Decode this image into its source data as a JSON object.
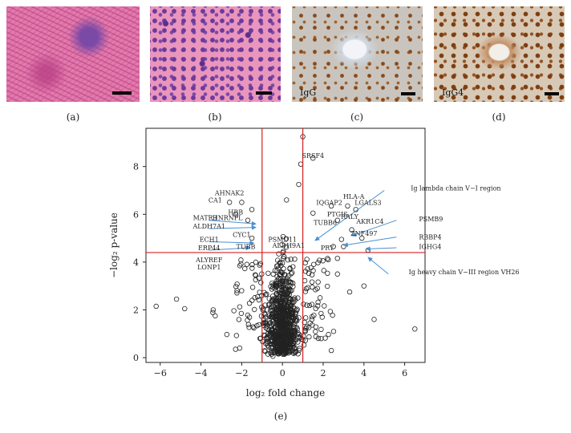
{
  "panels": {
    "a": {
      "label": "(a)"
    },
    "b": {
      "label": "(b)"
    },
    "c": {
      "label": "(c)",
      "tag": "IgG"
    },
    "d": {
      "label": "(d)",
      "tag": "IgG4"
    },
    "e": {
      "label": "(e)"
    }
  },
  "colors": {
    "he_pink": "#d86a98",
    "he_purple": "#6a3f9a",
    "ihc_blue": "#b9c8d8",
    "ihc_brown": "#8a4a1c",
    "threshold_red": "#d62020",
    "arrow_blue": "#4a90d0"
  },
  "chart_data": {
    "type": "scatter",
    "xlabel": "log₂ fold change",
    "ylabel": "−log₂ p-value",
    "xlim": [
      -6.7,
      7.0
    ],
    "ylim": [
      -0.2,
      9.6
    ],
    "xticks": [
      -6,
      -4,
      -2,
      0,
      2,
      4,
      6
    ],
    "yticks": [
      0,
      2,
      4,
      6,
      8
    ],
    "thresholds": {
      "x": [
        -1,
        1
      ],
      "y": 4.4
    },
    "grid": false,
    "labels": [
      {
        "text": "SRSF4",
        "x": 1.5,
        "y": 8.35
      },
      {
        "text": "AHNAK2",
        "x": -2.6,
        "y": 6.8
      },
      {
        "text": "CA1",
        "x": -3.3,
        "y": 6.5
      },
      {
        "text": "HBB",
        "x": -2.3,
        "y": 6.0
      },
      {
        "text": "HNRNPL",
        "x": -2.7,
        "y": 5.75
      },
      {
        "text": "MATR3",
        "x": -3.8,
        "y": 5.75
      },
      {
        "text": "ALDH7A1",
        "x": -3.6,
        "y": 5.4
      },
      {
        "text": "CYC1",
        "x": -2.0,
        "y": 5.05
      },
      {
        "text": "ECH1",
        "x": -3.6,
        "y": 4.85
      },
      {
        "text": "TUBB",
        "x": -1.8,
        "y": 4.55
      },
      {
        "text": "ERP44",
        "x": -3.6,
        "y": 4.5
      },
      {
        "text": "ALYREF",
        "x": -3.6,
        "y": 4.0
      },
      {
        "text": "LONP1",
        "x": -3.6,
        "y": 3.7
      },
      {
        "text": "PSMD11",
        "x": 0.0,
        "y": 4.85
      },
      {
        "text": "ALDH9A1",
        "x": 0.3,
        "y": 4.6
      },
      {
        "text": "IQGAP2",
        "x": 2.3,
        "y": 6.4
      },
      {
        "text": "HLA-A",
        "x": 3.5,
        "y": 6.65
      },
      {
        "text": "LGALS3",
        "x": 4.2,
        "y": 6.4
      },
      {
        "text": "PTGIS",
        "x": 2.7,
        "y": 5.9
      },
      {
        "text": "TUBB6",
        "x": 2.1,
        "y": 5.55
      },
      {
        "text": "RALY",
        "x": 3.3,
        "y": 5.8
      },
      {
        "text": "PRY",
        "x": 2.2,
        "y": 4.5
      },
      {
        "text": "AKR1C4",
        "x": 4.3,
        "y": 5.6
      },
      {
        "text": "ZNF497",
        "x": 4.0,
        "y": 5.1
      },
      {
        "text": "Ig lambda chain V−I region",
        "x": 6.3,
        "y": 7.0
      },
      {
        "text": "PSMB9",
        "x": 6.7,
        "y": 5.7
      },
      {
        "text": "RBBP4",
        "x": 6.7,
        "y": 4.95
      },
      {
        "text": "IGHG4",
        "x": 6.7,
        "y": 4.55
      },
      {
        "text": "Ig heavy chain V−III region VH26",
        "x": 6.2,
        "y": 3.5
      }
    ],
    "arrows": [
      {
        "from": [
          -3.6,
          5.75
        ],
        "to": [
          -1.3,
          5.6
        ]
      },
      {
        "from": [
          -3.6,
          5.4
        ],
        "to": [
          -1.3,
          5.45
        ]
      },
      {
        "from": [
          -3.6,
          4.85
        ],
        "to": [
          -1.4,
          4.8
        ]
      },
      {
        "from": [
          -3.6,
          4.5
        ],
        "to": [
          -1.6,
          4.6
        ]
      },
      {
        "from": [
          5.0,
          7.0
        ],
        "to": [
          1.6,
          4.9
        ]
      },
      {
        "from": [
          5.6,
          5.75
        ],
        "to": [
          3.4,
          5.1
        ]
      },
      {
        "from": [
          5.6,
          5.05
        ],
        "to": [
          3.0,
          4.7
        ]
      },
      {
        "from": [
          5.6,
          4.6
        ],
        "to": [
          4.1,
          4.55
        ]
      },
      {
        "from": [
          5.2,
          3.5
        ],
        "to": [
          4.2,
          4.2
        ]
      }
    ],
    "points_outliers": [
      [
        -6.2,
        2.15
      ],
      [
        -5.2,
        2.45
      ],
      [
        -4.8,
        2.05
      ],
      [
        -3.4,
        2.0
      ],
      [
        -3.3,
        1.75
      ],
      [
        -2.6,
        6.5
      ],
      [
        -2.0,
        6.5
      ],
      [
        -1.5,
        6.2
      ],
      [
        -2.3,
        6.0
      ],
      [
        -1.7,
        5.75
      ],
      [
        1.0,
        9.25
      ],
      [
        1.5,
        8.35
      ],
      [
        0.9,
        8.1
      ],
      [
        0.8,
        7.25
      ],
      [
        0.2,
        6.6
      ],
      [
        2.4,
        6.35
      ],
      [
        3.2,
        6.35
      ],
      [
        3.6,
        6.2
      ],
      [
        2.7,
        5.75
      ],
      [
        3.4,
        5.35
      ],
      [
        3.9,
        5.0
      ],
      [
        4.2,
        4.5
      ],
      [
        2.9,
        4.95
      ],
      [
        3.0,
        4.65
      ],
      [
        2.5,
        4.65
      ],
      [
        4.5,
        1.6
      ],
      [
        6.5,
        1.2
      ],
      [
        2.4,
        0.3
      ],
      [
        3.3,
        2.75
      ],
      [
        1.9,
        0.8
      ],
      [
        -2.1,
        0.4
      ],
      [
        -2.3,
        0.35
      ],
      [
        4.0,
        3.0
      ],
      [
        2.7,
        3.5
      ],
      [
        1.5,
        6.05
      ],
      [
        -1.5,
        5.0
      ]
    ]
  }
}
